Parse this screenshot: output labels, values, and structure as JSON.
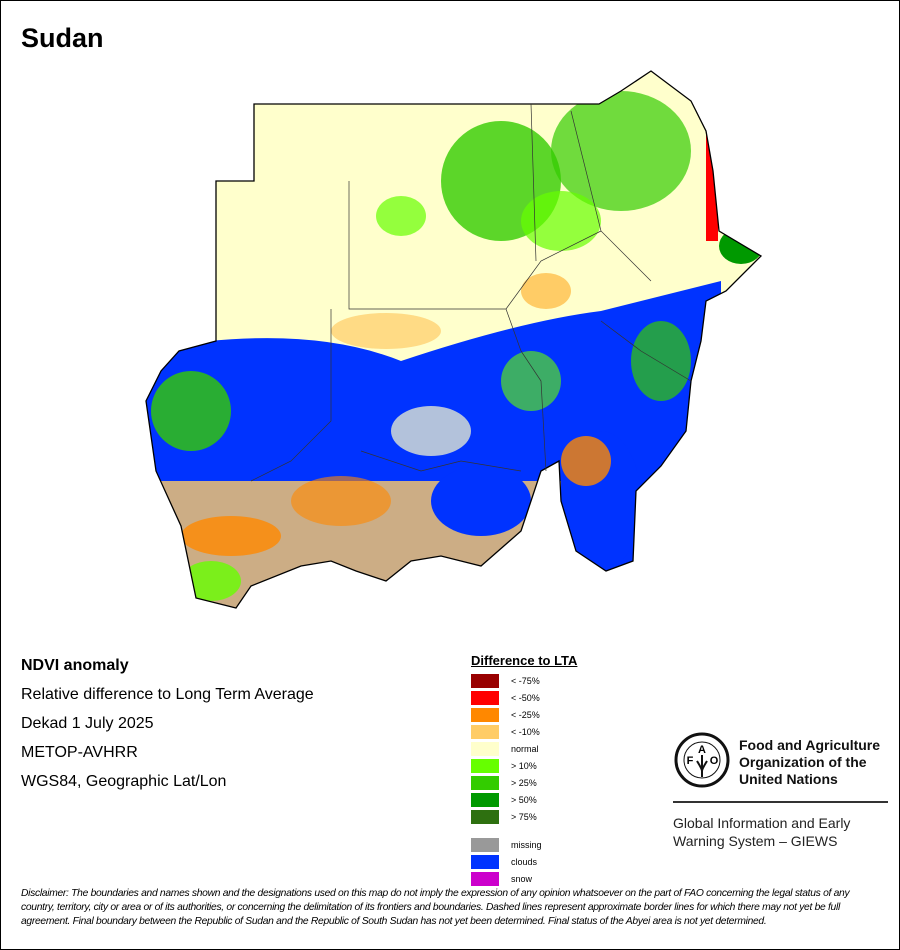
{
  "title": "Sudan",
  "info": {
    "product": "NDVI anomaly",
    "description": "Relative difference to Long Term Average",
    "period": "Dekad 1 July 2025",
    "sensor": "METOP-AVHRR",
    "projection": "WGS84, Geographic Lat/Lon"
  },
  "legend": {
    "title": "Difference to LTA",
    "items": [
      {
        "label": "< -75%",
        "color": "#990000"
      },
      {
        "label": "< -50%",
        "color": "#ff0000"
      },
      {
        "label": "< -25%",
        "color": "#ff8800"
      },
      {
        "label": "< -10%",
        "color": "#ffcc66"
      },
      {
        "label": "normal",
        "color": "#ffffcc"
      },
      {
        "label": "> 10%",
        "color": "#66ff00"
      },
      {
        "label": "> 25%",
        "color": "#33cc00"
      },
      {
        "label": "> 50%",
        "color": "#009900"
      },
      {
        "label": "> 75%",
        "color": "#2e7010"
      }
    ],
    "extra": [
      {
        "label": "missing",
        "color": "#999999"
      },
      {
        "label": "clouds",
        "color": "#0033ff"
      },
      {
        "label": "snow",
        "color": "#cc00cc"
      }
    ]
  },
  "fao": {
    "name": "Food and Agriculture Organization of the United Nations",
    "logo_text": "FAO FIAT PANIS",
    "system": "Global Information and Early Warning System – GIEWS"
  },
  "disclaimer": "Disclaimer: The boundaries and names shown and the designations used on this map do not imply the expression of any opinion whatsoever on the part of FAO concerning the legal status of any country, territory, city or area or of its authorities, or concerning the delimitation of its frontiers and boundaries. Dashed lines represent approximate border lines for which there may not yet be full agreement.  Final boundary between the Republic of Sudan and the Republic of South Sudan has not yet been determined. Final status of the Abyei area is not yet determined."
}
